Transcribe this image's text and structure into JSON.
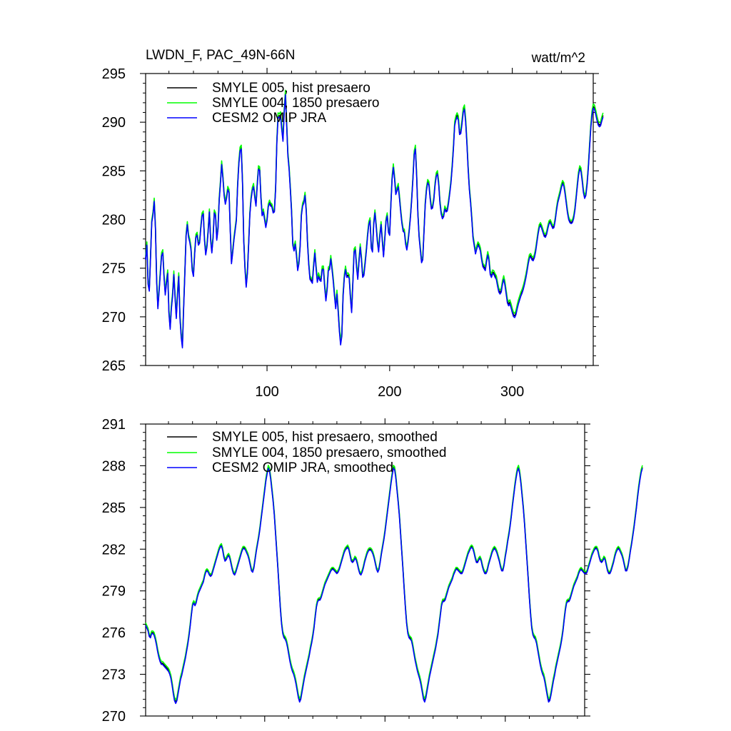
{
  "chart_data": [
    {
      "type": "line",
      "title": "LWDN_F, PAC_49N-66N",
      "units": "watt/m^2",
      "xlabel": "",
      "ylabel": "",
      "xlim": [
        1,
        366
      ],
      "ylim": [
        265,
        295
      ],
      "xticks": [
        100,
        200,
        300
      ],
      "yticks": [
        265,
        270,
        275,
        280,
        285,
        290,
        295
      ],
      "legend_position": "top-left",
      "x_description": "x = 1..366, one value per step; all three series share this x",
      "series": [
        {
          "name": "SMYLE 005, hist presaero",
          "color": "#000000",
          "offset": 0.0,
          "values": [
            276.0,
            277.5,
            273.5,
            272.8,
            276.2,
            279.8,
            280.6,
            282.0,
            279.2,
            273.7,
            271.0,
            272.8,
            274.6,
            276.4,
            276.7,
            274.2,
            272.4,
            273.6,
            274.6,
            270.5,
            268.9,
            271.0,
            272.3,
            274.5,
            272.1,
            270.0,
            272.4,
            274.3,
            270.0,
            268.1,
            267.0,
            271.0,
            274.6,
            278.4,
            279.6,
            278.3,
            277.8,
            277.0,
            274.9,
            274.3,
            276.6,
            278.3,
            278.5,
            277.5,
            277.7,
            279.2,
            280.5,
            280.7,
            278.0,
            276.5,
            277.3,
            278.9,
            280.9,
            278.0,
            276.7,
            278.2,
            280.8,
            280.5,
            278.0,
            279.1,
            282.1,
            283.8,
            285.8,
            284.4,
            282.6,
            281.7,
            282.3,
            283.2,
            282.9,
            279.0,
            275.6,
            276.7,
            278.0,
            279.0,
            280.0,
            283.5,
            285.8,
            287.2,
            287.4,
            283.9,
            278.0,
            275.1,
            273.2,
            274.6,
            277.5,
            280.6,
            282.2,
            283.1,
            283.5,
            282.4,
            281.5,
            283.6,
            285.3,
            285.2,
            282.4,
            280.5,
            280.9,
            280.1,
            279.3,
            280.0,
            281.4,
            281.8,
            281.5,
            281.4,
            280.8,
            280.9,
            283.2,
            288.0,
            290.7,
            290.6,
            290.8,
            289.4,
            288.2,
            291.1,
            293.0,
            289.9,
            286.7,
            285.3,
            283.2,
            280.9,
            277.5,
            276.9,
            277.6,
            276.4,
            274.9,
            275.6,
            277.3,
            280.5,
            281.5,
            281.8,
            282.6,
            280.9,
            277.7,
            275.5,
            274.0,
            273.8,
            273.6,
            275.3,
            276.7,
            275.1,
            273.7,
            274.3,
            273.9,
            273.8,
            275.0,
            275.0,
            273.2,
            271.8,
            272.9,
            274.9,
            275.0,
            276.1,
            275.0,
            273.8,
            272.3,
            271.0,
            272.5,
            270.7,
            268.7,
            267.3,
            268.2,
            272.2,
            274.1,
            275.0,
            274.2,
            274.3,
            274.1,
            272.1,
            270.6,
            273.6,
            276.8,
            277.0,
            275.2,
            274.0,
            275.8,
            277.3,
            276.0,
            274.2,
            274.4,
            275.6,
            276.9,
            278.4,
            279.6,
            280.0,
            277.2,
            276.8,
            279.6,
            280.8,
            279.4,
            277.8,
            276.8,
            278.4,
            279.6,
            277.9,
            276.3,
            278.0,
            279.9,
            280.5,
            278.8,
            278.5,
            281.6,
            284.3,
            285.5,
            284.3,
            282.7,
            283.1,
            283.5,
            282.3,
            280.9,
            279.7,
            278.9,
            278.8,
            277.6,
            277.0,
            277.8,
            279.0,
            280.4,
            282.2,
            284.3,
            286.8,
            287.4,
            284.6,
            280.7,
            278.3,
            277.0,
            275.7,
            276.0,
            278.8,
            281.6,
            283.1,
            283.9,
            283.7,
            282.3,
            281.2,
            281.3,
            282.1,
            283.6,
            284.6,
            284.8,
            283.7,
            281.8,
            280.7,
            280.2,
            280.4,
            281.2,
            280.9,
            281.0,
            281.8,
            282.8,
            283.9,
            285.5,
            287.4,
            289.8,
            290.4,
            290.7,
            290.4,
            288.9,
            289.0,
            290.0,
            291.2,
            291.5,
            290.1,
            287.9,
            285.3,
            283.2,
            281.8,
            280.1,
            278.2,
            277.4,
            276.6,
            277.1,
            277.5,
            277.3,
            276.9,
            276.0,
            275.3,
            275.1,
            274.9,
            275.8,
            276.5,
            275.9,
            274.5,
            274.2,
            274.6,
            274.5,
            274.2,
            274.0,
            273.3,
            272.7,
            272.5,
            272.7,
            273.5,
            274.0,
            273.4,
            272.5,
            271.6,
            271.3,
            271.5,
            271.1,
            270.6,
            270.2,
            270.1,
            270.4,
            271.0,
            271.5,
            271.9,
            272.3,
            272.6,
            273.0,
            273.5,
            274.1,
            274.8,
            275.6,
            276.2,
            276.3,
            276.0,
            275.9,
            276.2,
            276.8,
            277.7,
            278.6,
            279.3,
            279.5,
            279.2,
            278.8,
            278.4,
            278.3,
            278.6,
            279.2,
            279.7,
            279.8,
            279.5,
            279.2,
            279.3,
            280.0,
            281.0,
            281.8,
            282.3,
            282.8,
            283.4,
            283.8,
            283.6,
            282.8,
            281.8,
            280.8,
            280.1,
            279.8,
            279.7,
            279.8,
            280.2,
            281.0,
            282.2,
            283.5,
            284.7,
            285.3,
            285.1,
            284.1,
            282.9,
            282.3,
            282.6,
            283.7,
            285.4,
            287.5,
            289.5,
            290.9,
            291.6,
            291.5,
            291.0,
            290.4,
            289.9,
            289.7,
            289.8,
            290.3,
            290.7
          ]
        },
        {
          "name": "SMYLE 004, 1850 presaero",
          "color": "#00ff00",
          "offset": 0.3
        },
        {
          "name": "CESM2 OMIP JRA",
          "color": "#0000ff",
          "offset": -0.2
        }
      ]
    },
    {
      "type": "line",
      "title": "",
      "xlabel": "",
      "ylabel": "",
      "xlim": [
        1,
        366
      ],
      "ylim": [
        270,
        291
      ],
      "xticks": [
        100,
        200,
        300
      ],
      "yticks": [
        270,
        273,
        276,
        279,
        282,
        285,
        288,
        291
      ],
      "legend_position": "top-left",
      "x_description": "x = 1..366, one value per step; all three series share this x",
      "series": [
        {
          "name": "SMYLE 005, hist presaero, smoothed",
          "color": "#000000",
          "offset": 0.0,
          "values": [
            276.6,
            276.4,
            276.2,
            275.8,
            275.7,
            276.0,
            276.0,
            275.9,
            275.6,
            275.2,
            274.7,
            274.3,
            274.0,
            273.8,
            273.8,
            273.7,
            273.6,
            273.5,
            273.4,
            273.3,
            273.1,
            272.8,
            272.3,
            271.7,
            271.2,
            271.0,
            271.2,
            271.7,
            272.2,
            272.7,
            273.0,
            273.4,
            273.8,
            274.2,
            274.7,
            275.2,
            275.8,
            276.5,
            277.3,
            278.0,
            278.2,
            278.0,
            278.2,
            278.6,
            278.9,
            279.1,
            279.3,
            279.5,
            279.7,
            280.1,
            280.4,
            280.5,
            280.4,
            280.2,
            280.1,
            280.2,
            280.5,
            280.8,
            281.1,
            281.4,
            281.7,
            282.0,
            282.2,
            282.3,
            282.0,
            281.5,
            281.2,
            281.3,
            281.5,
            281.6,
            281.4,
            281.0,
            280.6,
            280.3,
            280.2,
            280.4,
            280.7,
            281.0,
            281.3,
            281.6,
            281.9,
            282.1,
            282.1,
            282.0,
            281.8,
            281.6,
            281.3,
            280.9,
            280.5,
            280.4,
            280.7,
            281.3,
            281.9,
            282.4,
            282.9,
            283.5,
            284.2,
            284.9,
            285.6,
            286.3,
            287.0,
            287.5,
            287.9,
            287.7,
            287.1,
            286.3,
            285.5,
            284.5,
            283.2,
            281.9,
            280.6,
            279.2,
            277.8,
            276.7,
            276.0,
            275.7,
            275.6,
            275.4,
            275.0,
            274.5,
            274.0,
            273.6,
            273.3,
            273.1,
            272.8,
            272.4,
            271.9,
            271.4,
            271.1,
            271.3,
            271.8,
            272.3,
            272.8,
            273.2,
            273.6,
            274.0,
            274.4,
            274.9,
            275.3,
            275.8,
            276.4,
            277.2,
            277.9,
            278.3,
            278.4,
            278.4,
            278.6,
            278.9,
            279.2,
            279.5,
            279.7,
            279.9,
            280.1,
            280.3,
            280.5,
            280.6,
            280.6,
            280.5,
            280.4,
            280.3,
            280.4,
            280.6,
            280.9,
            281.2,
            281.5,
            281.8,
            282.0,
            282.1,
            282.2,
            282.0,
            281.6,
            281.2,
            281.1,
            281.2,
            281.4,
            281.3,
            281.0,
            280.6,
            280.3,
            280.2,
            280.4,
            280.7,
            281.1,
            281.4,
            281.7,
            281.9,
            282.0,
            282.0,
            281.9,
            281.7,
            281.4,
            281.0,
            280.6,
            280.4,
            280.6,
            281.1,
            281.7,
            282.2,
            282.7,
            283.3,
            284.0,
            284.7,
            285.4,
            286.1,
            286.8,
            287.4,
            287.9,
            287.8,
            287.2,
            286.3,
            285.4,
            284.4,
            283.1,
            281.8,
            280.5,
            279.1,
            277.8,
            276.7,
            276.0,
            275.7,
            275.6,
            275.5,
            275.1,
            274.6,
            274.1,
            273.7,
            273.3,
            273.0,
            272.7,
            272.3,
            271.8,
            271.3,
            271.1,
            271.4,
            271.9,
            272.4,
            272.9,
            273.3,
            273.7,
            274.1,
            274.5,
            274.9,
            275.4,
            275.9,
            276.6,
            277.3,
            278.0,
            278.3,
            278.3,
            278.4,
            278.7,
            279.0,
            279.3,
            279.5,
            279.7,
            279.9,
            280.2,
            280.4,
            280.6,
            280.6,
            280.5,
            280.4,
            280.3,
            280.3,
            280.5,
            280.8,
            281.1,
            281.4,
            281.7,
            281.9,
            282.1,
            282.2,
            282.1,
            281.8,
            281.4,
            281.1,
            281.1,
            281.3,
            281.4,
            281.2,
            280.8,
            280.5,
            280.3,
            280.3,
            280.5,
            280.9,
            281.2,
            281.5,
            281.8,
            282.0,
            282.1,
            282.0,
            281.8,
            281.5,
            281.2,
            280.8,
            280.5,
            280.5,
            280.9,
            281.5,
            282.0,
            282.6,
            283.1,
            283.7,
            284.4,
            285.2,
            285.9,
            286.6,
            287.2,
            287.7,
            287.9,
            287.5,
            286.8,
            285.9,
            285.0,
            283.9,
            282.6,
            281.3,
            280.0,
            278.6,
            277.4,
            276.4,
            275.9,
            275.7,
            275.6,
            275.3,
            274.8,
            274.3,
            273.8,
            273.4,
            273.1,
            272.9,
            272.5,
            272.0,
            271.5,
            271.1,
            271.2,
            271.6,
            272.1,
            272.6,
            273.0,
            273.5,
            273.9,
            274.3,
            274.7,
            275.1,
            275.6,
            276.2,
            277.0,
            277.7,
            278.2,
            278.3,
            278.3,
            278.5,
            278.8,
            279.1,
            279.4,
            279.6,
            279.8,
            280.0,
            280.3,
            280.5,
            280.6,
            280.5,
            280.4,
            280.3,
            280.3,
            280.4,
            280.7,
            281.0,
            281.3,
            281.6,
            281.8,
            282.0,
            282.1,
            282.1,
            281.9,
            281.5,
            281.2,
            281.1,
            281.2,
            281.4,
            281.3,
            280.9,
            280.5,
            280.3,
            280.3,
            280.5,
            280.8,
            281.1,
            281.5,
            281.8,
            282.0,
            282.1,
            282.0,
            281.8,
            281.6,
            281.3,
            280.9,
            280.5,
            280.5,
            280.8,
            281.3,
            281.9,
            282.4,
            283.0,
            283.6,
            284.3,
            285.0,
            285.8,
            286.5,
            287.1,
            287.6,
            287.9
          ]
        },
        {
          "name": "SMYLE 004, 1850 presaero, smoothed",
          "color": "#00ff00",
          "offset": 0.15
        },
        {
          "name": "CESM2 OMIP JRA, smoothed",
          "color": "#0000ff",
          "offset": -0.1
        }
      ]
    }
  ]
}
